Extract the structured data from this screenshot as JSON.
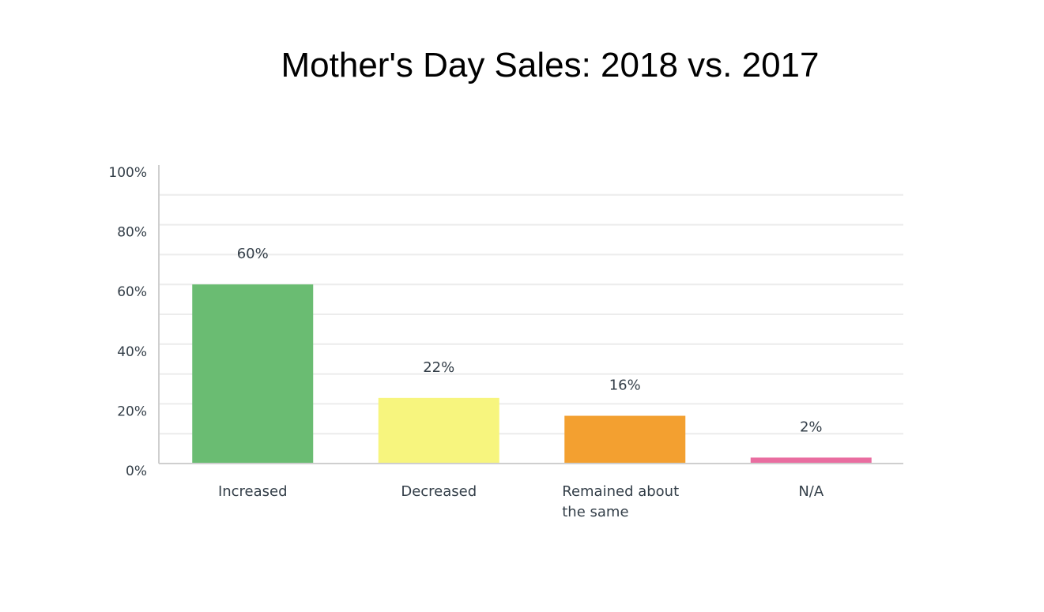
{
  "chart_data": {
    "type": "bar",
    "title": "Mother's Day Sales: 2018 vs. 2017",
    "xlabel": "",
    "ylabel": "",
    "ylim": [
      0,
      100
    ],
    "yticks": [
      "0%",
      "20%",
      "40%",
      "60%",
      "80%",
      "100%"
    ],
    "grid": true,
    "categories": [
      [
        "Increased"
      ],
      [
        "Decreased"
      ],
      [
        "Remained about",
        "the same"
      ],
      [
        "N/A"
      ]
    ],
    "values": [
      60,
      22,
      16,
      2
    ],
    "data_labels": [
      "60%",
      "22%",
      "16%",
      "2%"
    ],
    "colors": [
      "#6abc72",
      "#f7f57e",
      "#f3a030",
      "#e96da0"
    ]
  }
}
